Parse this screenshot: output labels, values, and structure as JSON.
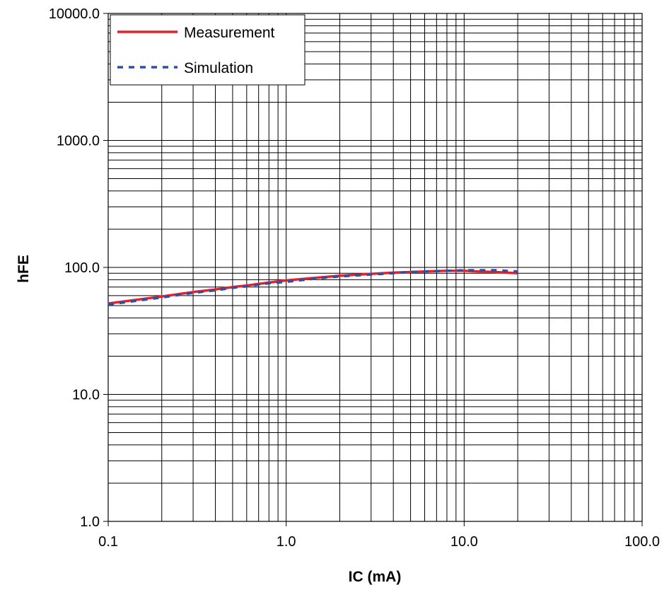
{
  "chart_data": {
    "type": "line",
    "xlabel": "IC (mA)",
    "ylabel": "hFE",
    "xscale": "log",
    "yscale": "log",
    "xlim": [
      0.1,
      100.0
    ],
    "ylim": [
      1.0,
      10000.0
    ],
    "xticks": [
      "0.1",
      "1.0",
      "10.0",
      "100.0"
    ],
    "yticks": [
      "1.0",
      "10.0",
      "100.0",
      "1000.0",
      "10000.0"
    ],
    "grid": true,
    "legend_position": "top-left",
    "series": [
      {
        "name": "Measurement",
        "color": "#e8202a",
        "style": "solid",
        "x": [
          0.1,
          0.15,
          0.2,
          0.3,
          0.4,
          0.5,
          0.6,
          0.8,
          1.0,
          1.5,
          2.0,
          3.0,
          4.0,
          5.0,
          6.0,
          8.0,
          10.0,
          12.0,
          15.0,
          20.0
        ],
        "y": [
          52,
          56,
          59,
          64,
          67,
          70,
          72,
          76,
          79,
          83,
          86,
          89,
          91,
          92,
          93,
          94,
          94,
          93,
          92,
          90
        ]
      },
      {
        "name": "Simulation",
        "color": "#2e4fa8",
        "style": "dashed",
        "x": [
          0.1,
          0.15,
          0.2,
          0.3,
          0.4,
          0.5,
          0.6,
          0.8,
          1.0,
          1.5,
          2.0,
          3.0,
          4.0,
          5.0,
          6.0,
          8.0,
          10.0,
          12.0,
          15.0,
          20.0
        ],
        "y": [
          51,
          55,
          58,
          63,
          66,
          69,
          71,
          75,
          77,
          82,
          85,
          88,
          90,
          92,
          93,
          94,
          95,
          95,
          95,
          93
        ]
      }
    ]
  }
}
